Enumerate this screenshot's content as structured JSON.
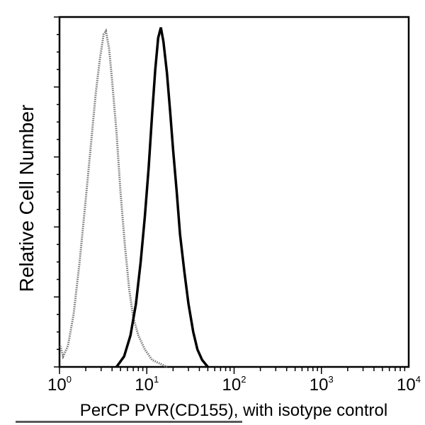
{
  "chart_data": {
    "type": "line",
    "title": "",
    "xlabel": "PerCP PVR(CD155), with isotype control",
    "ylabel": "Relative Cell Number",
    "xscale": "log",
    "xlim": [
      1,
      10000
    ],
    "ylim": [
      0,
      100
    ],
    "x_tick_labels": [
      {
        "base": "10",
        "exp": "0",
        "value": 1
      },
      {
        "base": "10",
        "exp": "1",
        "value": 10
      },
      {
        "base": "10",
        "exp": "2",
        "value": 100
      },
      {
        "base": "10",
        "exp": "3",
        "value": 1000
      },
      {
        "base": "10",
        "exp": "4",
        "value": 10000
      }
    ],
    "y_tick_labels": [],
    "grid": false,
    "legend": null,
    "series": [
      {
        "name": "Isotype control",
        "style": "dotted-grey",
        "color": "#6b6b6b",
        "x": [
          1.02,
          1.1,
          1.25,
          1.45,
          1.7,
          2.0,
          2.3,
          2.6,
          2.9,
          3.2,
          3.4,
          3.7,
          4.0,
          4.5,
          5.0,
          5.6,
          6.3,
          7.0,
          8.0,
          9.5,
          11.5,
          14.0,
          17.0
        ],
        "values": [
          6,
          3,
          6,
          15,
          30,
          48,
          64,
          78,
          88,
          95,
          96,
          91,
          82,
          67,
          50,
          35,
          22,
          14,
          9,
          5,
          2,
          1,
          0
        ]
      },
      {
        "name": "PVR (CD155)",
        "style": "solid-black",
        "color": "#000000",
        "x": [
          4.5,
          5.5,
          6.5,
          7.5,
          8.5,
          9.5,
          10.5,
          11.5,
          12.5,
          13.5,
          14.5,
          15.5,
          17.0,
          18.5,
          20.0,
          22.0,
          24.0,
          27.0,
          30.0,
          34.0,
          38.0,
          43.0,
          50.0
        ],
        "values": [
          0,
          3,
          9,
          18,
          30,
          43,
          57,
          72,
          85,
          94,
          97,
          93,
          84,
          73,
          62,
          50,
          38,
          27,
          18,
          10,
          5,
          2,
          0
        ]
      }
    ]
  }
}
